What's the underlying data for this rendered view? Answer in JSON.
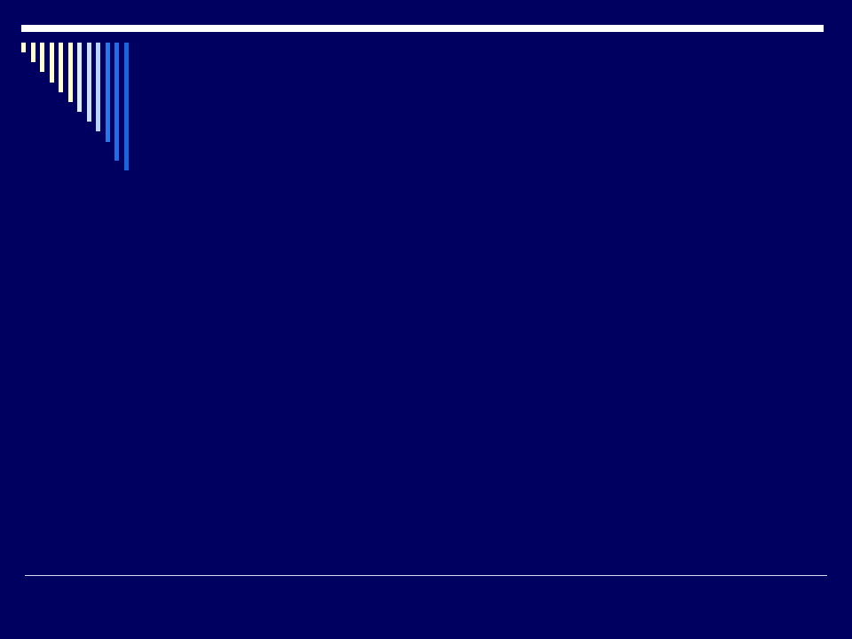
{
  "slide": {
    "background_color": "#000060",
    "top_rule_color": "#ffffff",
    "bottom_rule_color": "#d8d8f0",
    "stripe_colors": [
      "#ffffcc",
      "#ffffcc",
      "#ffffcc",
      "#ffffcc",
      "#ffffcc",
      "#ffffcc",
      "#ddeeff",
      "#cce0ff",
      "#b8d4ff",
      "#2a78e8",
      "#1f6ee6",
      "#1a66e0"
    ]
  }
}
